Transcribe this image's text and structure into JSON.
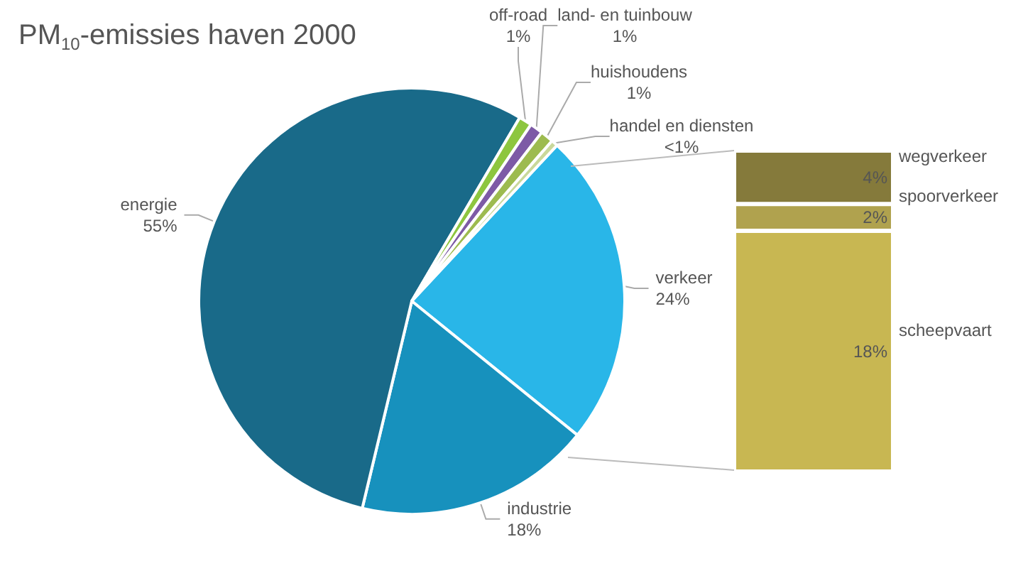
{
  "chart_data": [
    {
      "type": "pie",
      "title": "PM$_{10}$-emissies haven 2000",
      "categories": [
        "verkeer",
        "industrie",
        "energie",
        "off-road",
        "land- en tuinbouw",
        "huishoudens",
        "handel en diensten"
      ],
      "values": [
        24,
        18,
        55,
        1,
        1,
        1,
        0.5
      ],
      "value_labels": [
        "24%",
        "18%",
        "55%",
        "1%",
        "1%",
        "1%",
        "<1%"
      ],
      "colors": [
        "#29b6e8",
        "#1791bd",
        "#196a89",
        "#8dc63f",
        "#7d5aa6",
        "#9dbb4f",
        "#c9d89a"
      ]
    },
    {
      "type": "bar",
      "stacked": true,
      "categories": [
        null
      ],
      "series": [
        {
          "name": "scheepvaart",
          "color": "#c8b752",
          "values": [
            18
          ],
          "value_labels": [
            "18%"
          ]
        },
        {
          "name": "spoorverkeer",
          "color": "#b0a24e",
          "values": [
            2
          ],
          "value_labels": [
            "2%"
          ]
        },
        {
          "name": "wegverkeer",
          "color": "#857a3b",
          "values": [
            4
          ],
          "value_labels": [
            "4%"
          ]
        }
      ]
    }
  ]
}
